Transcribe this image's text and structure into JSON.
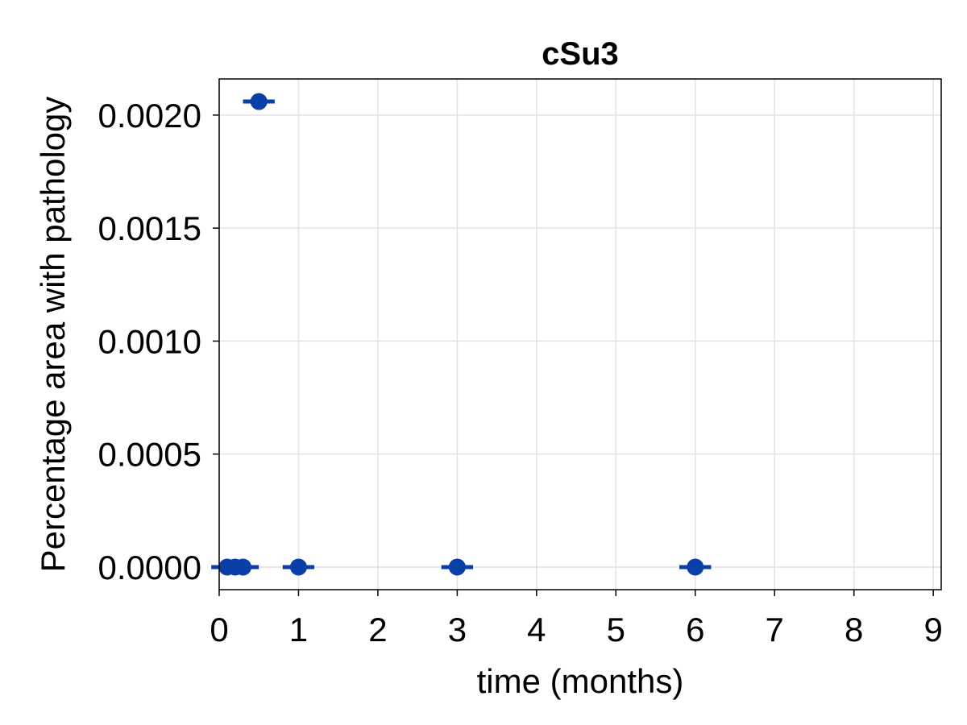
{
  "chart_data": {
    "type": "scatter",
    "title": "cSu3",
    "xlabel": "time (months)",
    "ylabel": "Percentage area with pathology",
    "xlim": [
      0,
      9.1
    ],
    "ylim": [
      -0.0001,
      0.00216
    ],
    "xticks": [
      0,
      1,
      2,
      3,
      4,
      5,
      6,
      7,
      8,
      9
    ],
    "yticks": [
      0,
      0.0005,
      0.001,
      0.0015,
      0.002
    ],
    "ytick_labels": [
      "0.0000",
      "0.0005",
      "0.0010",
      "0.0015",
      "0.0020"
    ],
    "grid": true,
    "marker_color": "#0b3fa8",
    "points": [
      {
        "x": 0.1,
        "y": 0.0,
        "xerr": 0.2
      },
      {
        "x": 0.2,
        "y": 0.0,
        "xerr": 0.2
      },
      {
        "x": 0.3,
        "y": 0.0,
        "xerr": 0.2
      },
      {
        "x": 0.5,
        "y": 0.00206,
        "xerr": 0.2
      },
      {
        "x": 1,
        "y": 0.0,
        "xerr": 0.2
      },
      {
        "x": 3,
        "y": 0.0,
        "xerr": 0.2
      },
      {
        "x": 6,
        "y": 0.0,
        "xerr": 0.2
      }
    ]
  }
}
